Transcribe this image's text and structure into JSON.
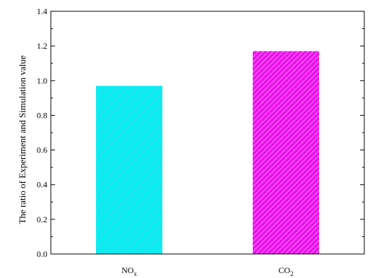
{
  "chart_data": {
    "type": "bar",
    "categories": [
      {
        "base": "NO",
        "sub": "x",
        "color": "#00f0f0",
        "hatch": "#6ec8f0"
      },
      {
        "base": "CO",
        "sub": "2",
        "color": "#ee10ee",
        "hatch": "#f8b8f8"
      }
    ],
    "values": [
      0.97,
      1.17
    ],
    "ylabel": "The ratio of Experiment and Simulation value",
    "xlabel": "",
    "ylim": [
      0,
      1.4
    ],
    "yticks": [
      "0.0",
      "0.2",
      "0.4",
      "0.6",
      "0.8",
      "1.0",
      "1.2",
      "1.4"
    ],
    "grid": false
  }
}
